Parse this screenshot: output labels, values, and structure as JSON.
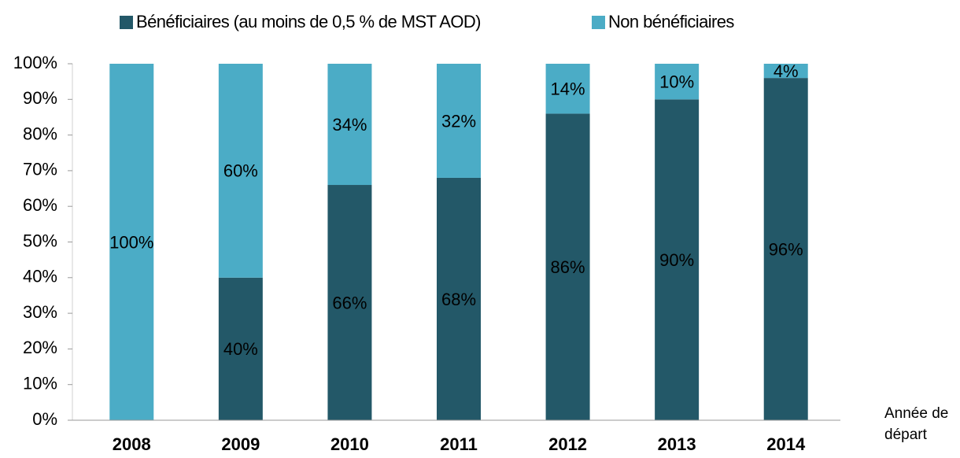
{
  "chart_data": {
    "type": "stacked_bar",
    "x_label": "Année de départ",
    "categories": [
      "2008",
      "2009",
      "2010",
      "2011",
      "2012",
      "2013",
      "2014"
    ],
    "series": [
      {
        "name": "Bénéficiaires (au moins de 0,5 % de MST AOD)",
        "color": "#235868",
        "values": [
          0,
          40,
          66,
          68,
          86,
          90,
          96
        ],
        "value_labels": [
          null,
          "40%",
          "66%",
          "68%",
          "86%",
          "90%",
          "96%"
        ]
      },
      {
        "name": "Non bénéficiaires",
        "color": "#4bacc6",
        "values": [
          100,
          60,
          34,
          32,
          14,
          10,
          4
        ],
        "value_labels": [
          "100%",
          "60%",
          "34%",
          "32%",
          "14%",
          "10%",
          "4%"
        ]
      }
    ],
    "ylim": [
      0,
      100
    ],
    "yticks": [
      {
        "value": 0,
        "label": "0%"
      },
      {
        "value": 10,
        "label": "10%"
      },
      {
        "value": 20,
        "label": "20%"
      },
      {
        "value": 30,
        "label": "30%"
      },
      {
        "value": 40,
        "label": "40%"
      },
      {
        "value": 50,
        "label": "50%"
      },
      {
        "value": 60,
        "label": "60%"
      },
      {
        "value": 70,
        "label": "70%"
      },
      {
        "value": 80,
        "label": "80%"
      },
      {
        "value": 90,
        "label": "90%"
      },
      {
        "value": 100,
        "label": "100%"
      }
    ],
    "grid": false,
    "legend": "top"
  }
}
